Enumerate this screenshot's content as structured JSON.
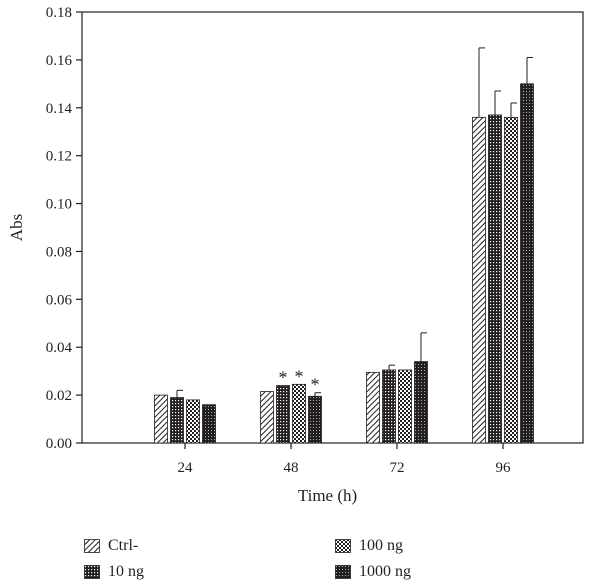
{
  "chart_data": {
    "type": "bar",
    "title": "",
    "xlabel": "Time (h)",
    "ylabel": "Abs",
    "categories": [
      "24",
      "48",
      "72",
      "96"
    ],
    "ylim": [
      0,
      0.18
    ],
    "yticks": [
      "0.00",
      "0.02",
      "0.04",
      "0.06",
      "0.08",
      "0.10",
      "0.12",
      "0.14",
      "0.16",
      "0.18"
    ],
    "series": [
      {
        "name": "Ctrl-",
        "pattern": "diagonal-hatch",
        "values": [
          0.02,
          0.0215,
          0.0295,
          0.136
        ],
        "errors": [
          0.0,
          0.0,
          0.0,
          0.029
        ],
        "significant": [
          false,
          false,
          false,
          false
        ]
      },
      {
        "name": "10 ng",
        "pattern": "grid",
        "values": [
          0.019,
          0.024,
          0.0305,
          0.137
        ],
        "errors": [
          0.003,
          0.0,
          0.002,
          0.01
        ],
        "significant": [
          false,
          true,
          false,
          false
        ]
      },
      {
        "name": "100 ng",
        "pattern": "checkerboard",
        "values": [
          0.018,
          0.0245,
          0.0305,
          0.136
        ],
        "errors": [
          0.0,
          0.0,
          0.0,
          0.006
        ],
        "significant": [
          false,
          true,
          false,
          false
        ]
      },
      {
        "name": "1000 ng",
        "pattern": "dark-dotted",
        "values": [
          0.016,
          0.0195,
          0.034,
          0.15
        ],
        "errors": [
          0.0,
          0.0015,
          0.012,
          0.011
        ],
        "significant": [
          false,
          true,
          false,
          false
        ]
      }
    ],
    "annotation_symbol": "*",
    "legend_position": "bottom",
    "grid": false
  },
  "colors": {
    "ink": "#231f20",
    "background": "#ffffff"
  }
}
